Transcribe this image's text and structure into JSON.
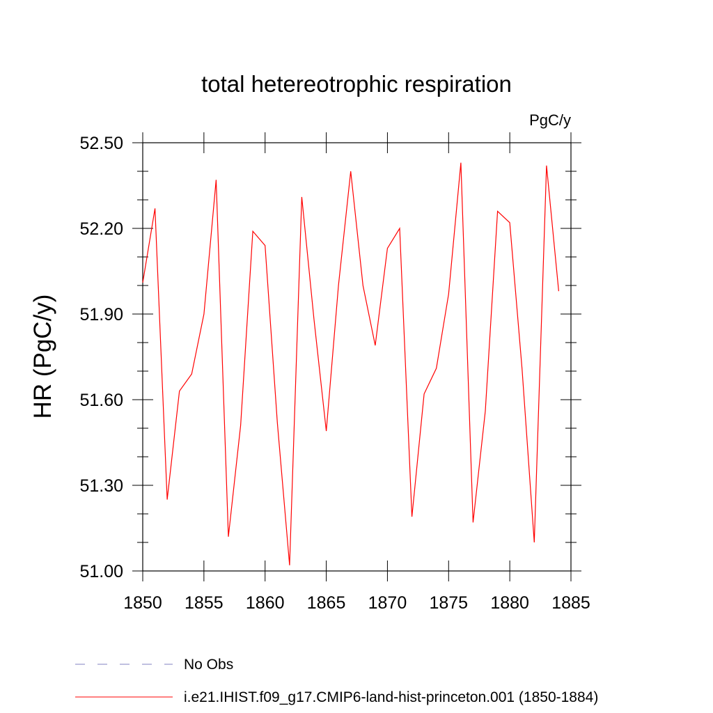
{
  "chart_data": {
    "type": "line",
    "title": "total hetereotrophic respiration",
    "units_label": "PgC/y",
    "xlabel": "",
    "ylabel": "HR  (PgC/y)",
    "xlim": [
      1850,
      1885
    ],
    "ylim": [
      51.0,
      52.5
    ],
    "x_ticks": [
      1850,
      1855,
      1860,
      1865,
      1870,
      1875,
      1880,
      1885
    ],
    "y_ticks": [
      "51.00",
      "51.30",
      "51.60",
      "51.90",
      "52.20",
      "52.50"
    ],
    "grid": false,
    "legend_position": "bottom",
    "series": [
      {
        "name": "i.e21.IHIST.f09_g17.CMIP6-land-hist-princeton.001 (1850-1884)",
        "color": "#ff0000",
        "style": "solid",
        "x": [
          1850,
          1851,
          1852,
          1853,
          1854,
          1855,
          1856,
          1857,
          1858,
          1859,
          1860,
          1861,
          1862,
          1863,
          1864,
          1865,
          1866,
          1867,
          1868,
          1869,
          1870,
          1871,
          1872,
          1873,
          1874,
          1875,
          1876,
          1877,
          1878,
          1879,
          1880,
          1881,
          1882,
          1883,
          1884
        ],
        "y": [
          52.01,
          52.27,
          51.25,
          51.63,
          51.69,
          51.9,
          52.37,
          51.12,
          51.51,
          52.19,
          52.14,
          51.52,
          51.02,
          52.31,
          51.88,
          51.49,
          52.0,
          52.4,
          52.0,
          51.79,
          52.13,
          52.2,
          51.19,
          51.62,
          51.71,
          51.97,
          52.43,
          51.17,
          51.56,
          52.26,
          52.22,
          51.71,
          51.1,
          52.42,
          51.98
        ]
      }
    ],
    "legend": [
      {
        "label": "No Obs",
        "color": "#8080c0",
        "style": "dashed"
      },
      {
        "label": "i.e21.IHIST.f09_g17.CMIP6-land-hist-princeton.001 (1850-1884)",
        "color": "#ff0000",
        "style": "solid"
      }
    ]
  }
}
